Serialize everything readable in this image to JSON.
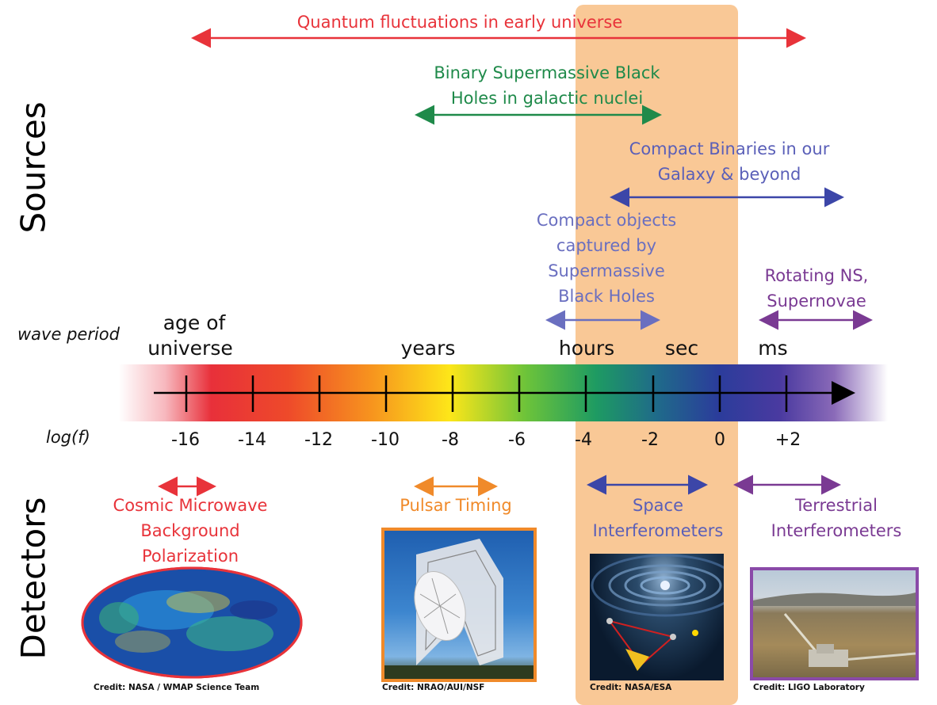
{
  "titles": {
    "sources": "Sources",
    "detectors": "Detectors"
  },
  "labels": {
    "wave_period": "wave period",
    "logf": "log(f)"
  },
  "sources": {
    "quantum": "Quantum fluctuations in early universe",
    "smbh_line1": "Binary Supermassive Black",
    "smbh_line2": "Holes in galactic nuclei",
    "compact_bin_line1": "Compact Binaries in our",
    "compact_bin_line2": "Galaxy & beyond",
    "emri_line1": "Compact objects",
    "emri_line2": "captured by",
    "emri_line3": "Supermassive",
    "emri_line4": "Black Holes",
    "rot_line1": "Rotating NS,",
    "rot_line2": "Supernovae"
  },
  "periods": {
    "age_line1": "age of",
    "age_line2": "universe",
    "years": "years",
    "hours": "hours",
    "sec": "sec",
    "ms": "ms"
  },
  "ticks": [
    "-16",
    "-14",
    "-12",
    "-10",
    "-8",
    "-6",
    "-4",
    "-2",
    "0",
    "+2"
  ],
  "detectors": {
    "cmb_line1": "Cosmic Microwave",
    "cmb_line2": "Background",
    "cmb_line3": "Polarization",
    "pulsar": "Pulsar Timing",
    "space_line1": "Space",
    "space_line2": "Interferometers",
    "terr_line1": "Terrestrial",
    "terr_line2": "Interferometers"
  },
  "credits": {
    "wmap": "Credit: NASA / WMAP Science Team",
    "nrao": "Credit: NRAO/AUI/NSF",
    "nasa_esa": "Credit: NASA/ESA",
    "ligo": "Credit: LIGO Laboratory"
  },
  "colors": {
    "red": "#e8333a",
    "green": "#1f8a4a",
    "blue": "#3c46a8",
    "purple": "#7a3a93",
    "orange": "#f08a2a",
    "highlight": "#f9c48f"
  }
}
